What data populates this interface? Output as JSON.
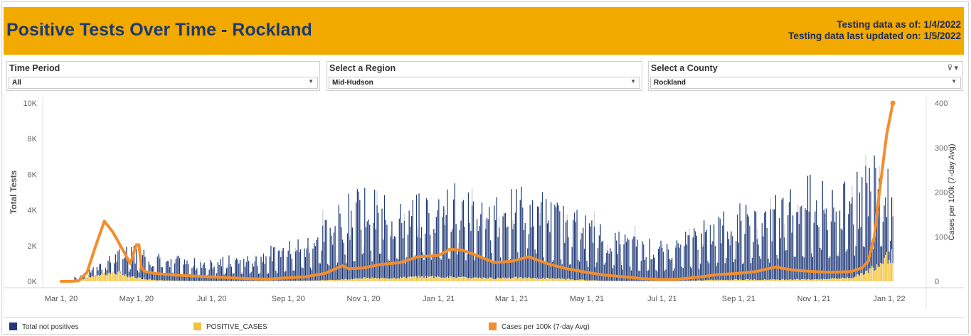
{
  "header": {
    "title": "Positive Tests Over Time - Rockland",
    "as_of": "Testing data as of: 1/4/2022",
    "updated": "Testing data last updated on: 1/5/2022"
  },
  "filters": {
    "time_period": {
      "label": "Time Period",
      "value": "All"
    },
    "region": {
      "label": "Select a Region",
      "value": "Mid-Hudson"
    },
    "county": {
      "label": "Select a County",
      "value": "Rockland"
    }
  },
  "colors": {
    "total_not_positives": "#1f3a7a",
    "positive_cases": "#f0c23c",
    "cases_per_100k": "#f28e2b",
    "header_bg": "#f2a900",
    "title": "#1a3a73"
  },
  "legend": {
    "item1": "Total not positives",
    "item2": "POSITIVE_CASES",
    "item3": "Cases per 100k (7-day Avg)"
  },
  "chart_data": {
    "type": "bar",
    "title": "Positive Tests Over Time - Rockland",
    "ylabel": "Total Tests",
    "y2label": "Cases per 100k (7-day Avg)",
    "ylim": [
      0,
      10000
    ],
    "y2lim": [
      0,
      400
    ],
    "y_ticks": [
      "0K",
      "2K",
      "4K",
      "6K",
      "8K",
      "10K"
    ],
    "y2_ticks": [
      "0",
      "100",
      "200",
      "300",
      "400"
    ],
    "x_ticks": [
      "Mar 1, 20",
      "May 1, 20",
      "Jul 1, 20",
      "Sep 1, 20",
      "Nov 1, 20",
      "Jan 1, 21",
      "Mar 1, 21",
      "May 1, 21",
      "Jul 1, 21",
      "Sep 1, 21",
      "Nov 1, 21",
      "Jan 1, 22"
    ],
    "legend_position": "bottom",
    "grid": false,
    "series": [
      {
        "name": "Total not positives",
        "type": "bar",
        "axis": "left",
        "x": [
          "2020-03-15",
          "2020-04-01",
          "2020-04-15",
          "2020-05-01",
          "2020-05-15",
          "2020-06-01",
          "2020-06-15",
          "2020-07-01",
          "2020-07-15",
          "2020-08-01",
          "2020-08-15",
          "2020-09-01",
          "2020-09-15",
          "2020-10-01",
          "2020-10-15",
          "2020-11-01",
          "2020-11-15",
          "2020-12-01",
          "2020-12-15",
          "2021-01-01",
          "2021-01-15",
          "2021-02-01",
          "2021-02-15",
          "2021-03-01",
          "2021-03-15",
          "2021-04-01",
          "2021-04-15",
          "2021-05-01",
          "2021-05-15",
          "2021-06-01",
          "2021-06-15",
          "2021-07-01",
          "2021-07-15",
          "2021-08-01",
          "2021-08-15",
          "2021-09-01",
          "2021-09-15",
          "2021-10-01",
          "2021-10-15",
          "2021-11-01",
          "2021-11-15",
          "2021-12-01",
          "2021-12-15",
          "2022-01-01"
        ],
        "values": [
          200,
          600,
          1100,
          1300,
          1000,
          900,
          800,
          850,
          900,
          1000,
          1200,
          1400,
          1600,
          2200,
          2800,
          3400,
          3000,
          2700,
          3000,
          3200,
          3500,
          3100,
          2900,
          3200,
          3500,
          2900,
          2600,
          2300,
          2000,
          1700,
          1500,
          1400,
          1600,
          2000,
          2400,
          2700,
          2600,
          3000,
          3400,
          3700,
          3200,
          3500,
          4200,
          4500
        ]
      },
      {
        "name": "POSITIVE_CASES",
        "type": "bar",
        "axis": "left",
        "x": [
          "2020-03-15",
          "2020-04-01",
          "2020-04-15",
          "2020-05-01",
          "2020-05-15",
          "2020-06-01",
          "2020-06-15",
          "2020-07-01",
          "2020-07-15",
          "2020-08-01",
          "2020-08-15",
          "2020-09-01",
          "2020-09-15",
          "2020-10-01",
          "2020-10-15",
          "2020-11-01",
          "2020-11-15",
          "2020-12-01",
          "2020-12-15",
          "2021-01-01",
          "2021-01-15",
          "2021-02-01",
          "2021-02-15",
          "2021-03-01",
          "2021-03-15",
          "2021-04-01",
          "2021-04-15",
          "2021-05-01",
          "2021-05-15",
          "2021-06-01",
          "2021-06-15",
          "2021-07-01",
          "2021-07-15",
          "2021-08-01",
          "2021-08-15",
          "2021-09-01",
          "2021-09-15",
          "2021-10-01",
          "2021-10-15",
          "2021-11-01",
          "2021-11-15",
          "2021-12-01",
          "2021-12-15",
          "2022-01-01"
        ],
        "values": [
          60,
          420,
          480,
          200,
          70,
          30,
          20,
          15,
          15,
          20,
          25,
          30,
          35,
          60,
          100,
          180,
          160,
          200,
          240,
          260,
          220,
          180,
          170,
          200,
          180,
          160,
          120,
          60,
          30,
          15,
          10,
          10,
          15,
          50,
          80,
          100,
          90,
          100,
          110,
          100,
          140,
          200,
          600,
          1400
        ]
      },
      {
        "name": "Cases per 100k (7-day Avg)",
        "type": "line",
        "axis": "right",
        "x": [
          "2020-03-01",
          "2020-03-08",
          "2020-03-15",
          "2020-03-22",
          "2020-03-29",
          "2020-04-05",
          "2020-04-12",
          "2020-04-19",
          "2020-04-26",
          "2020-05-01",
          "2020-05-03",
          "2020-05-05",
          "2020-05-08",
          "2020-05-15",
          "2020-06-01",
          "2020-06-15",
          "2020-07-01",
          "2020-07-15",
          "2020-08-01",
          "2020-08-15",
          "2020-09-01",
          "2020-09-15",
          "2020-10-01",
          "2020-10-15",
          "2020-10-20",
          "2020-11-01",
          "2020-11-15",
          "2020-12-01",
          "2020-12-15",
          "2021-01-01",
          "2021-01-10",
          "2021-01-20",
          "2021-02-01",
          "2021-02-15",
          "2021-03-01",
          "2021-03-15",
          "2021-04-01",
          "2021-04-15",
          "2021-05-01",
          "2021-05-15",
          "2021-06-01",
          "2021-06-15",
          "2021-07-01",
          "2021-07-15",
          "2021-08-01",
          "2021-08-15",
          "2021-09-01",
          "2021-09-15",
          "2021-10-01",
          "2021-10-15",
          "2021-11-01",
          "2021-11-15",
          "2021-12-01",
          "2021-12-10",
          "2021-12-15",
          "2021-12-20",
          "2021-12-25",
          "2021-12-30",
          "2022-01-04"
        ],
        "values": [
          0,
          0,
          1,
          20,
          80,
          135,
          110,
          75,
          40,
          82,
          82,
          30,
          22,
          18,
          14,
          12,
          10,
          8,
          6,
          5,
          8,
          10,
          18,
          35,
          28,
          30,
          38,
          42,
          55,
          58,
          72,
          70,
          58,
          42,
          45,
          55,
          38,
          28,
          20,
          14,
          10,
          6,
          4,
          5,
          10,
          15,
          18,
          22,
          32,
          25,
          22,
          20,
          22,
          30,
          45,
          100,
          220,
          330,
          400
        ]
      }
    ]
  }
}
